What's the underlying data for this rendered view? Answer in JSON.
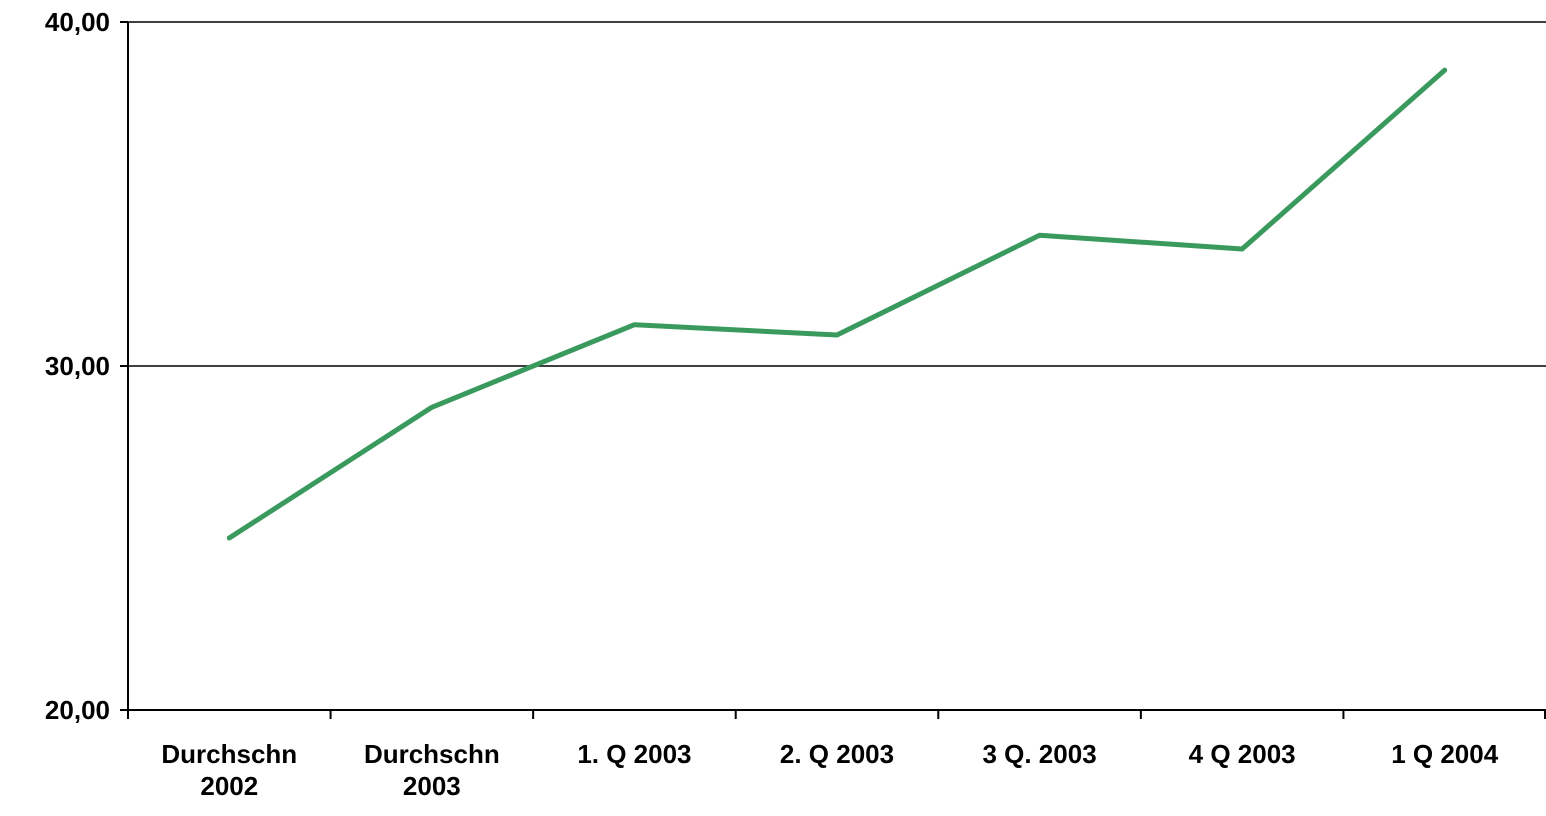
{
  "chart_data": {
    "type": "line",
    "categories": [
      "Durchschn 2002",
      "Durchschn 2003",
      "1. Q 2003",
      "2. Q 2003",
      "3 Q. 2003",
      "4 Q 2003",
      "1 Q 2004"
    ],
    "series": [
      {
        "color": "#3a9a5e",
        "values": [
          25.0,
          28.8,
          31.2,
          30.9,
          33.8,
          33.4,
          38.6
        ]
      }
    ],
    "ylim": [
      20,
      40
    ],
    "yticks": [
      {
        "value": 20,
        "label": "20,00"
      },
      {
        "value": 30,
        "label": "30,00"
      },
      {
        "value": 40,
        "label": "40,00"
      }
    ],
    "grid": true
  }
}
